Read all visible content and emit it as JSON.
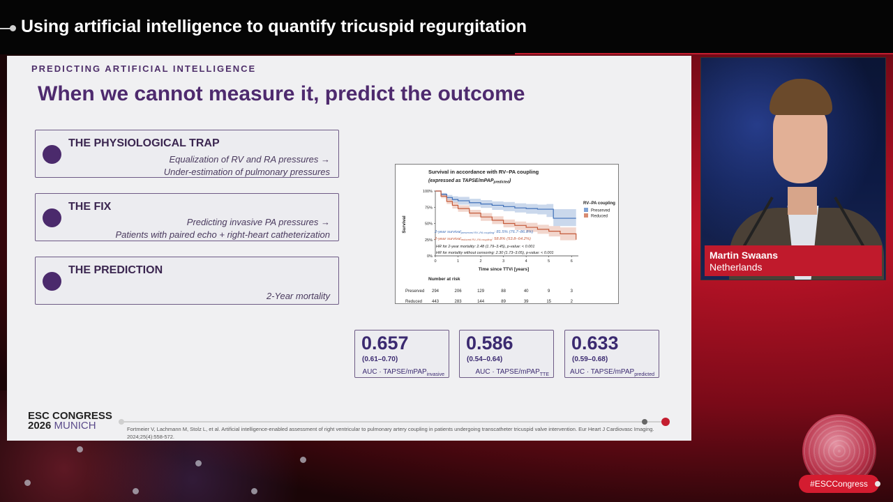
{
  "header": {
    "title": "Using artificial intelligence to quantify tricuspid regurgitation"
  },
  "slide": {
    "kicker": "PREDICTING ARTIFICIAL INTELLIGENCE",
    "headline": "When we cannot measure it, predict the outcome",
    "boxes": [
      {
        "title": "THE PHYSIOLOGICAL TRAP",
        "line1": "Equalization of RV and RA pressures →",
        "line2": "Under-estimation of pulmonary pressures"
      },
      {
        "title": "THE FIX",
        "line1": "Predicting invasive PA pressures →",
        "line2": "Patients with paired echo + right-heart catheterization"
      },
      {
        "title": "THE PREDICTION",
        "line1": "",
        "line2": "2-Year mortality"
      }
    ],
    "auc_cards": [
      {
        "value": "0.657",
        "ci": "(0.61–0.70)",
        "label": "AUC · TAPSE/mPAP",
        "sub": "invasive"
      },
      {
        "value": "0.586",
        "ci": "(0.54–0.64)",
        "label": "AUC · TAPSE/mPAP",
        "sub": "TTE"
      },
      {
        "value": "0.633",
        "ci": "(0.59–0.68)",
        "label": "AUC · TAPSE/mPAP",
        "sub": "predicted"
      }
    ],
    "footer": {
      "congress_line1": "ESC CONGRESS",
      "congress_year": "2026",
      "congress_city": "MUNICH",
      "citation": "Fortmeier V, Lachmann M, Stolz L, et al. Artificial intelligence-enabled assessment of right ventricular to pulmonary artery coupling in patients undergoing transcatheter tricuspid valve intervention. Eur Heart J Cardiovasc Imaging. 2024;25(4):558-572."
    }
  },
  "chart_data": {
    "type": "line",
    "title": "Survival in accordance with RV–PA coupling",
    "subtitle": "(expressed as TAPSE/mPAP",
    "subtitle_sub": "predicted",
    "subtitle_end": ")",
    "xlabel": "Time since TTVi [years]",
    "ylabel": "Survival",
    "xlim": [
      0,
      6.3
    ],
    "ylim": [
      0,
      1
    ],
    "x_ticks": [
      "0",
      "1",
      "2",
      "3",
      "4",
      "5",
      "6"
    ],
    "y_ticks": [
      "0%",
      "25%",
      "50%",
      "75%",
      "100%"
    ],
    "legend_title": "RV–PA coupling",
    "legend_position": "right",
    "series": [
      {
        "name": "Preserved",
        "color": "#3f6fb8",
        "band_color": "#9fb8dd",
        "x": [
          0,
          0.25,
          0.5,
          0.75,
          1,
          1.5,
          2,
          2.5,
          3,
          3.5,
          4,
          4.5,
          4.9,
          5.2,
          6.2
        ],
        "y": [
          1.0,
          0.95,
          0.9,
          0.87,
          0.85,
          0.82,
          0.8,
          0.78,
          0.76,
          0.74,
          0.73,
          0.72,
          0.72,
          0.58,
          0.58
        ],
        "lower": [
          1.0,
          0.92,
          0.86,
          0.82,
          0.79,
          0.76,
          0.74,
          0.71,
          0.69,
          0.67,
          0.65,
          0.64,
          0.6,
          0.46,
          0.46
        ],
        "upper": [
          1.0,
          0.97,
          0.94,
          0.92,
          0.91,
          0.88,
          0.86,
          0.84,
          0.83,
          0.81,
          0.8,
          0.79,
          0.8,
          0.72,
          0.72
        ]
      },
      {
        "name": "Reduced",
        "color": "#c45a3a",
        "band_color": "#e8b4a4",
        "x": [
          0,
          0.25,
          0.5,
          0.75,
          1,
          1.5,
          2,
          2.5,
          3,
          3.5,
          4,
          4.5,
          5,
          5.5,
          6.2
        ],
        "y": [
          1.0,
          0.92,
          0.84,
          0.78,
          0.73,
          0.66,
          0.6,
          0.55,
          0.5,
          0.47,
          0.44,
          0.41,
          0.38,
          0.34,
          0.25
        ],
        "lower": [
          1.0,
          0.89,
          0.8,
          0.73,
          0.68,
          0.6,
          0.54,
          0.49,
          0.44,
          0.4,
          0.37,
          0.34,
          0.3,
          0.24,
          0.15
        ],
        "upper": [
          1.0,
          0.95,
          0.88,
          0.83,
          0.78,
          0.71,
          0.66,
          0.61,
          0.56,
          0.53,
          0.51,
          0.48,
          0.46,
          0.44,
          0.35
        ]
      }
    ],
    "annotations": {
      "preserved_line": "2-year survival",
      "preserved_sub": "preserved RV–PA coupling",
      "preserved_value": ": 81.5% (76.7–86.8%)",
      "reduced_line": "2-year survival",
      "reduced_sub": "reduced RV–PA coupling",
      "reduced_value": ": 58.8% (53.8–64.2%)",
      "hr1": "HR for 2-year mortality: 2.48 (1.79–3.45), p-value: < 0.001",
      "hr2": "HR for mortality without censoring: 2.30 (1.73–3.05), p-value: < 0.001"
    },
    "risk_table": {
      "title": "Number at risk",
      "rows": [
        {
          "name": "Preserved",
          "values": [
            "294",
            "206",
            "129",
            "88",
            "40",
            "9",
            "3"
          ]
        },
        {
          "name": "Reduced",
          "values": [
            "443",
            "283",
            "144",
            "89",
            "39",
            "15",
            "2"
          ]
        }
      ]
    }
  },
  "speaker": {
    "name": "Martin Swaans",
    "country": "Netherlands"
  },
  "hashtag": "#ESCCongress"
}
